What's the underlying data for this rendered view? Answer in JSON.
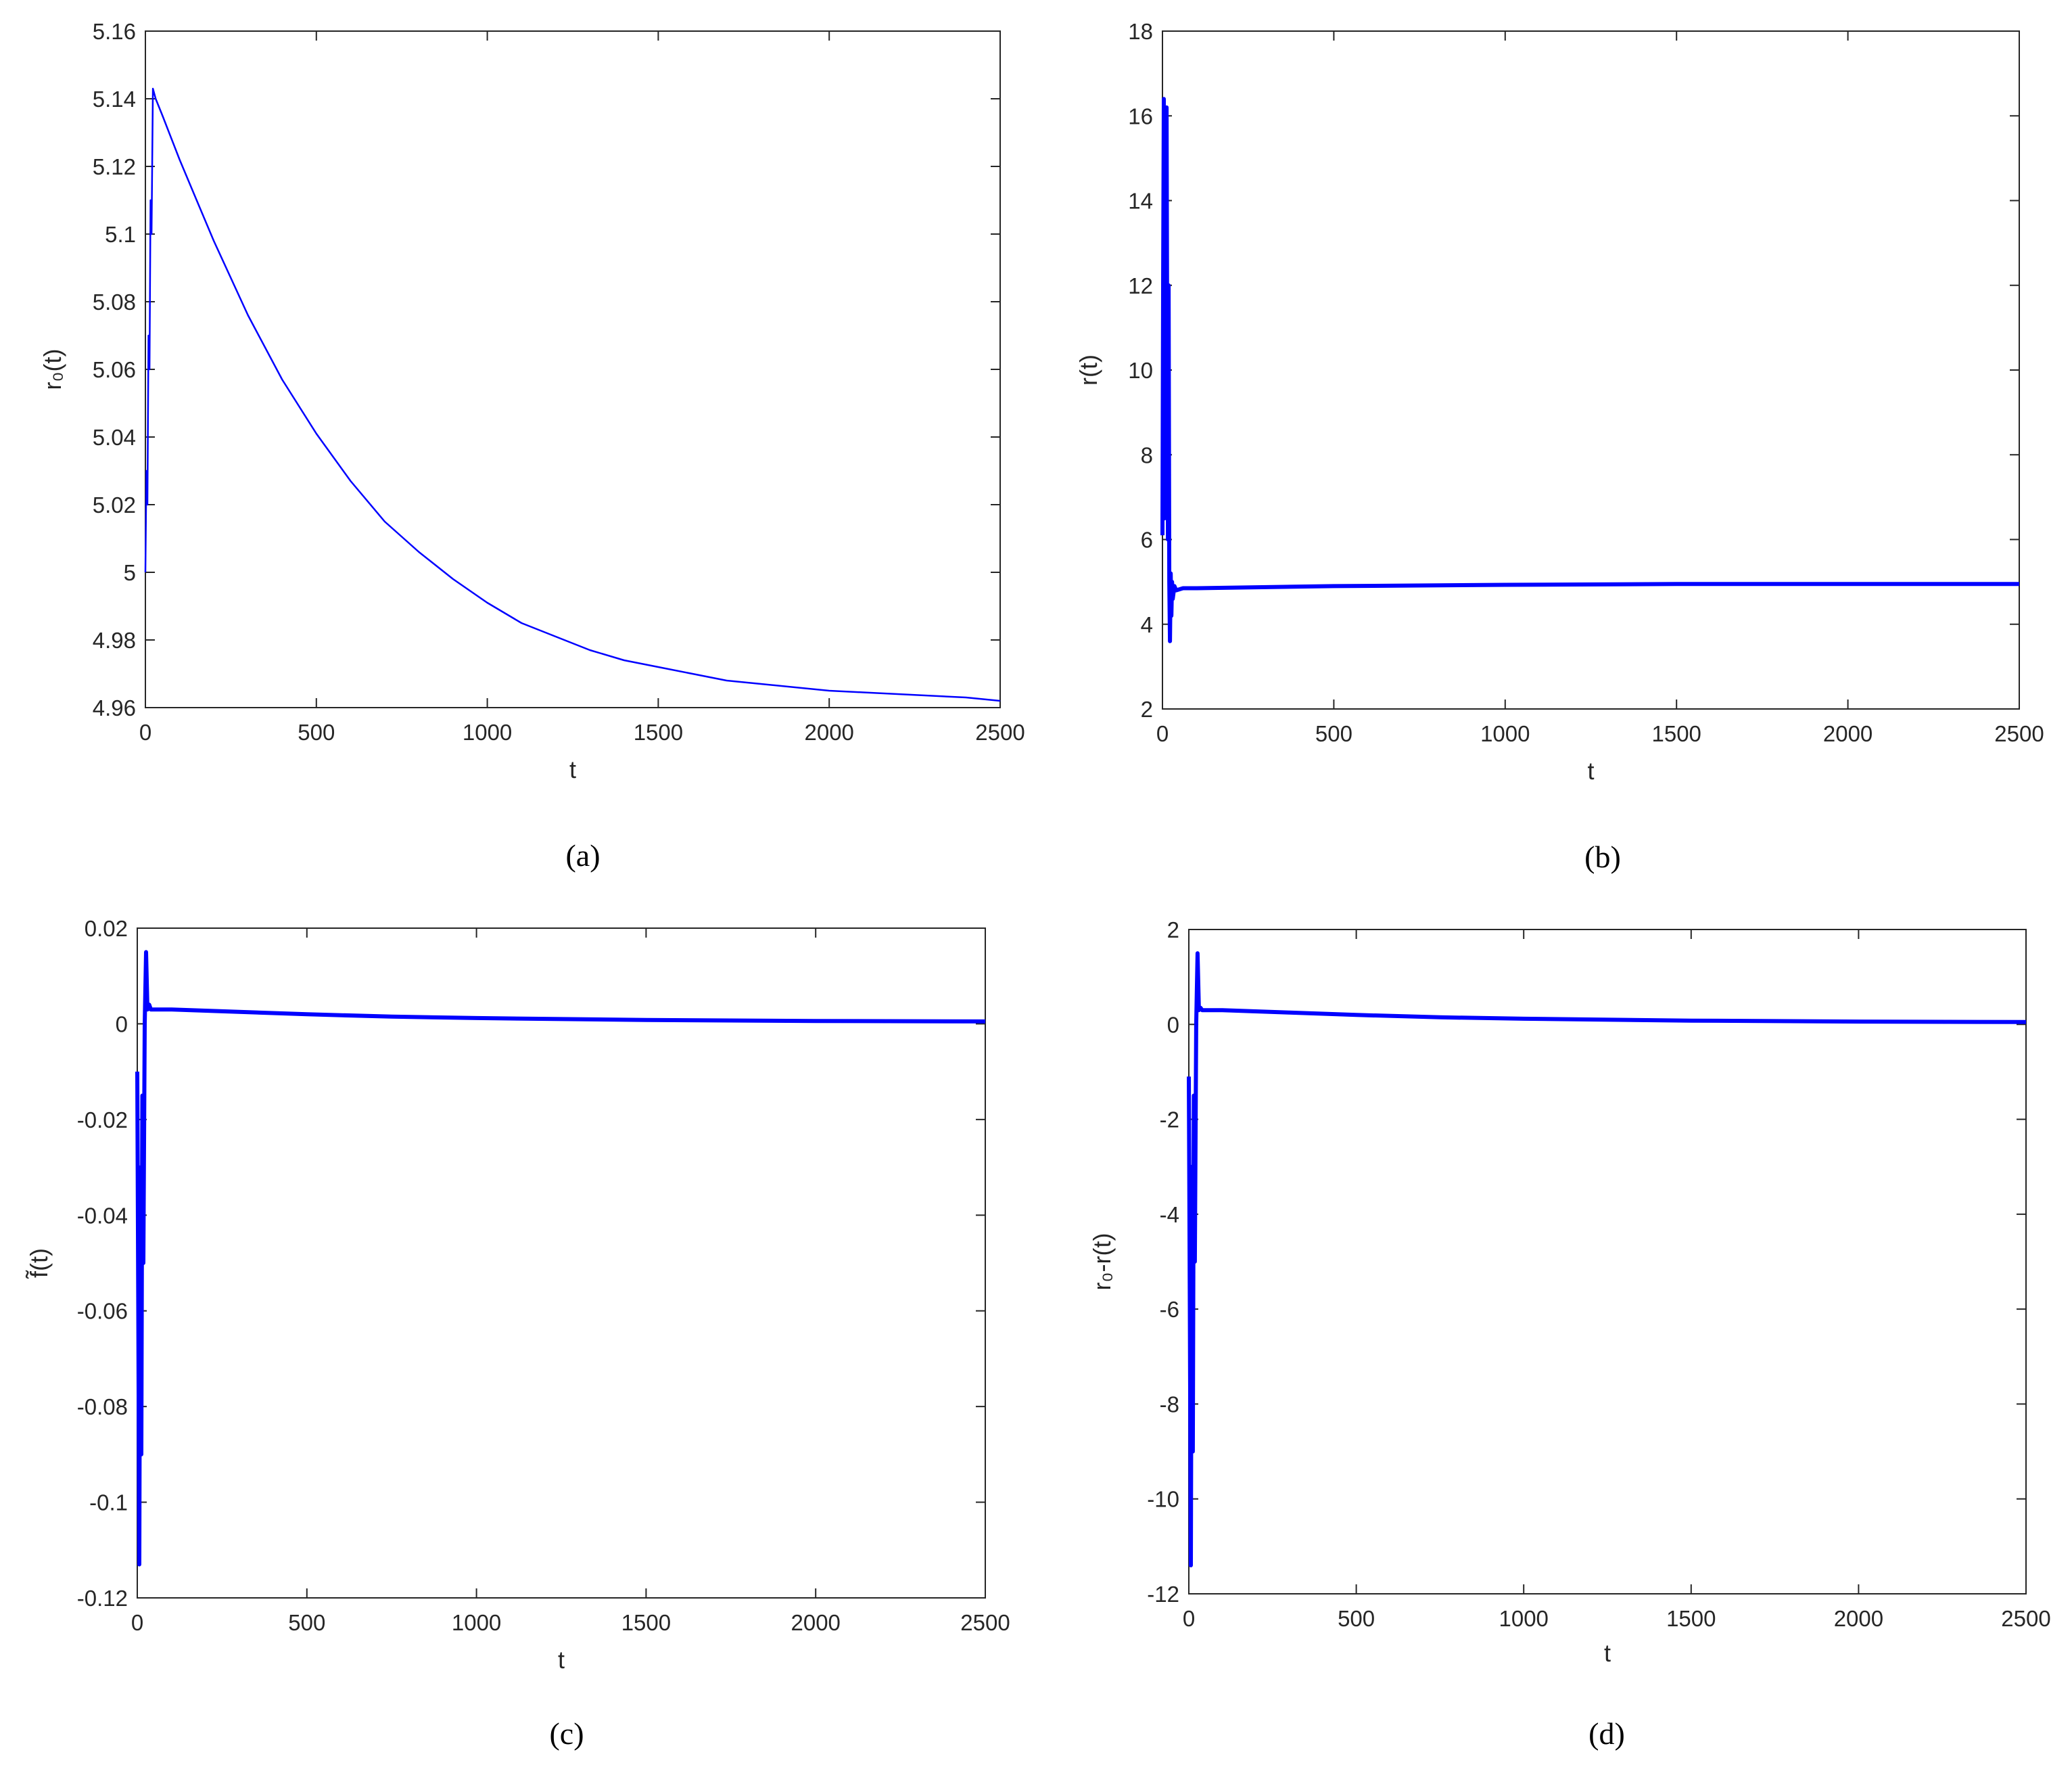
{
  "chart_data": [
    {
      "type": "line",
      "caption": "(a)",
      "xlabel": "t",
      "ylabel": "r₀(t)",
      "xlim": [
        0,
        2500
      ],
      "ylim": [
        4.96,
        5.16
      ],
      "xticks": [
        0,
        500,
        1000,
        1500,
        2000,
        2500
      ],
      "xtick_labels": [
        "0",
        "500",
        "1000",
        "1500",
        "2000",
        "2500"
      ],
      "yticks": [
        4.96,
        4.98,
        5.0,
        5.02,
        5.04,
        5.06,
        5.08,
        5.1,
        5.12,
        5.14,
        5.16
      ],
      "ytick_labels": [
        "4.96",
        "4.98",
        "5",
        "5.02",
        "5.04",
        "5.06",
        "5.08",
        "5.1",
        "5.12",
        "5.14",
        "5.16"
      ],
      "grid": false,
      "series": [
        {
          "color": "#0000ff",
          "x": [
            0,
            3,
            6,
            9,
            12,
            15,
            18,
            22,
            30,
            50,
            100,
            150,
            200,
            250,
            300,
            400,
            500,
            600,
            700,
            800,
            900,
            1000,
            1100,
            1200,
            1300,
            1400,
            1500,
            1600,
            1700,
            1800,
            1900,
            2000,
            2100,
            2200,
            2300,
            2400,
            2500
          ],
          "y": [
            5.0,
            5.03,
            5.02,
            5.07,
            5.06,
            5.11,
            5.1,
            5.143,
            5.14,
            5.135,
            5.122,
            5.11,
            5.098,
            5.087,
            5.076,
            5.057,
            5.041,
            5.027,
            5.015,
            5.006,
            4.998,
            4.991,
            4.985,
            4.981,
            4.977,
            4.974,
            4.972,
            4.97,
            4.968,
            4.967,
            4.966,
            4.965,
            4.9645,
            4.964,
            4.9635,
            4.963,
            4.962
          ]
        }
      ]
    },
    {
      "type": "line",
      "caption": "(b)",
      "xlabel": "t",
      "ylabel": "r(t)",
      "xlim": [
        0,
        2500
      ],
      "ylim": [
        2,
        18
      ],
      "xticks": [
        0,
        500,
        1000,
        1500,
        2000,
        2500
      ],
      "xtick_labels": [
        "0",
        "500",
        "1000",
        "1500",
        "2000",
        "2500"
      ],
      "yticks": [
        2,
        4,
        6,
        8,
        10,
        12,
        14,
        16,
        18
      ],
      "ytick_labels": [
        "2",
        "4",
        "6",
        "8",
        "10",
        "12",
        "14",
        "16",
        "18"
      ],
      "grid": false,
      "series": [
        {
          "color": "#0000ff",
          "x": [
            0,
            2,
            4,
            6,
            8,
            10,
            12,
            14,
            16,
            18,
            20,
            22,
            24,
            26,
            28,
            30,
            35,
            40,
            60,
            100,
            500,
            1000,
            1500,
            2000,
            2500
          ],
          "y": [
            6.1,
            12.0,
            16.4,
            6.5,
            14.5,
            8.0,
            16.2,
            10.0,
            6.0,
            12.0,
            5.0,
            3.6,
            5.2,
            4.2,
            5.0,
            4.6,
            4.9,
            4.8,
            4.85,
            4.85,
            4.9,
            4.93,
            4.95,
            4.95,
            4.95
          ]
        }
      ]
    },
    {
      "type": "line",
      "caption": "(c)",
      "xlabel": "t",
      "ylabel": "f̃(t)",
      "xlim": [
        0,
        2500
      ],
      "ylim": [
        -0.12,
        0.02
      ],
      "xticks": [
        0,
        500,
        1000,
        1500,
        2000,
        2500
      ],
      "xtick_labels": [
        "0",
        "500",
        "1000",
        "1500",
        "2000",
        "2500"
      ],
      "yticks": [
        -0.12,
        -0.1,
        -0.08,
        -0.06,
        -0.04,
        -0.02,
        0,
        0.02
      ],
      "ytick_labels": [
        "-0.12",
        "-0.1",
        "-0.08",
        "-0.06",
        "-0.04",
        "-0.02",
        "0",
        "0.02"
      ],
      "grid": false,
      "series": [
        {
          "color": "#0000ff",
          "x": [
            0,
            3,
            6,
            9,
            12,
            15,
            18,
            22,
            26,
            30,
            35,
            40,
            60,
            100,
            300,
            500,
            750,
            1000,
            1500,
            2000,
            2500
          ],
          "y": [
            -0.01,
            -0.06,
            -0.113,
            -0.03,
            -0.09,
            -0.015,
            -0.05,
            0.0,
            0.015,
            0.003,
            0.004,
            0.003,
            0.003,
            0.003,
            0.0025,
            0.002,
            0.0015,
            0.0012,
            0.0008,
            0.0006,
            0.0005
          ]
        }
      ]
    },
    {
      "type": "line",
      "caption": "(d)",
      "xlabel": "t",
      "ylabel": "r₀-r(t)",
      "xlim": [
        0,
        2500
      ],
      "ylim": [
        -12,
        2
      ],
      "xticks": [
        0,
        500,
        1000,
        1500,
        2000,
        2500
      ],
      "xtick_labels": [
        "0",
        "500",
        "1000",
        "1500",
        "2000",
        "2500"
      ],
      "yticks": [
        -12,
        -10,
        -8,
        -6,
        -4,
        -2,
        0,
        2
      ],
      "ytick_labels": [
        "-12",
        "-10",
        "-8",
        "-6",
        "-4",
        "-2",
        "0",
        "2"
      ],
      "grid": false,
      "series": [
        {
          "color": "#0000ff",
          "x": [
            0,
            3,
            6,
            9,
            12,
            15,
            18,
            22,
            26,
            30,
            35,
            40,
            60,
            100,
            300,
            500,
            750,
            1000,
            1500,
            2000,
            2500
          ],
          "y": [
            -1.1,
            -6.0,
            -11.4,
            -3.0,
            -9.0,
            -1.5,
            -5.0,
            0.0,
            1.5,
            0.3,
            0.35,
            0.3,
            0.3,
            0.3,
            0.25,
            0.2,
            0.15,
            0.12,
            0.08,
            0.06,
            0.05
          ]
        }
      ]
    }
  ]
}
